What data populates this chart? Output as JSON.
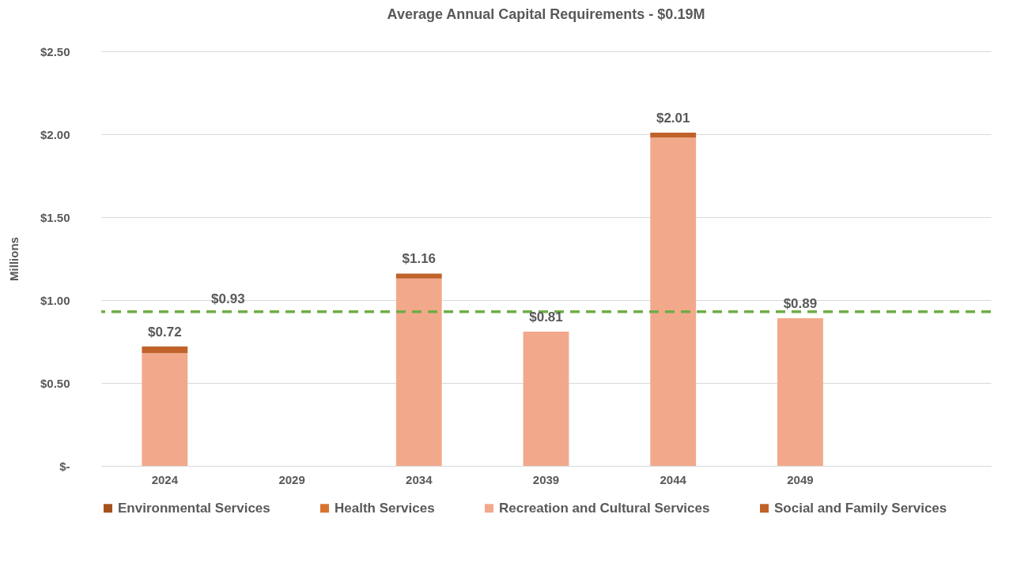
{
  "chart_data": {
    "type": "bar",
    "stacked": true,
    "title": "Average Annual Capital Requirements - $0.19M",
    "ylabel": "Millions",
    "categories": [
      "2024",
      "2029",
      "2034",
      "2039",
      "2044",
      "2049",
      null
    ],
    "series": [
      {
        "name": "Environmental Services",
        "color": "#a5521f",
        "values": [
          null,
          null,
          null,
          null,
          null,
          null,
          null
        ]
      },
      {
        "name": "Health Services",
        "color": "#d8732e",
        "values": [
          null,
          null,
          null,
          null,
          null,
          null,
          null
        ]
      },
      {
        "name": "Recreation and Cultural Services",
        "color": "#f2a98b",
        "values": [
          0.68,
          null,
          1.13,
          0.81,
          1.98,
          0.89,
          null
        ]
      },
      {
        "name": "Social and Family Services",
        "color": "#c0622a",
        "values": [
          0.04,
          null,
          0.03,
          null,
          0.03,
          null,
          null
        ]
      }
    ],
    "totals": [
      "$0.72",
      null,
      "$1.16",
      "$0.81",
      "$2.01",
      "$0.89",
      null
    ],
    "ylim": [
      0,
      2.5
    ],
    "yticks": [
      {
        "value": 0,
        "label": "$-"
      },
      {
        "value": 0.5,
        "label": "$0.50"
      },
      {
        "value": 1,
        "label": "$1.00"
      },
      {
        "value": 1.5,
        "label": "$1.50"
      },
      {
        "value": 2,
        "label": "$2.00"
      },
      {
        "value": 2.5,
        "label": "$2.50"
      }
    ],
    "ref_lines": [
      {
        "axis": "y",
        "value": 0.93,
        "label": "$0.93",
        "color": "#70ad47",
        "line_style": "dashed"
      }
    ],
    "grid": "y",
    "legend": "bottom"
  }
}
